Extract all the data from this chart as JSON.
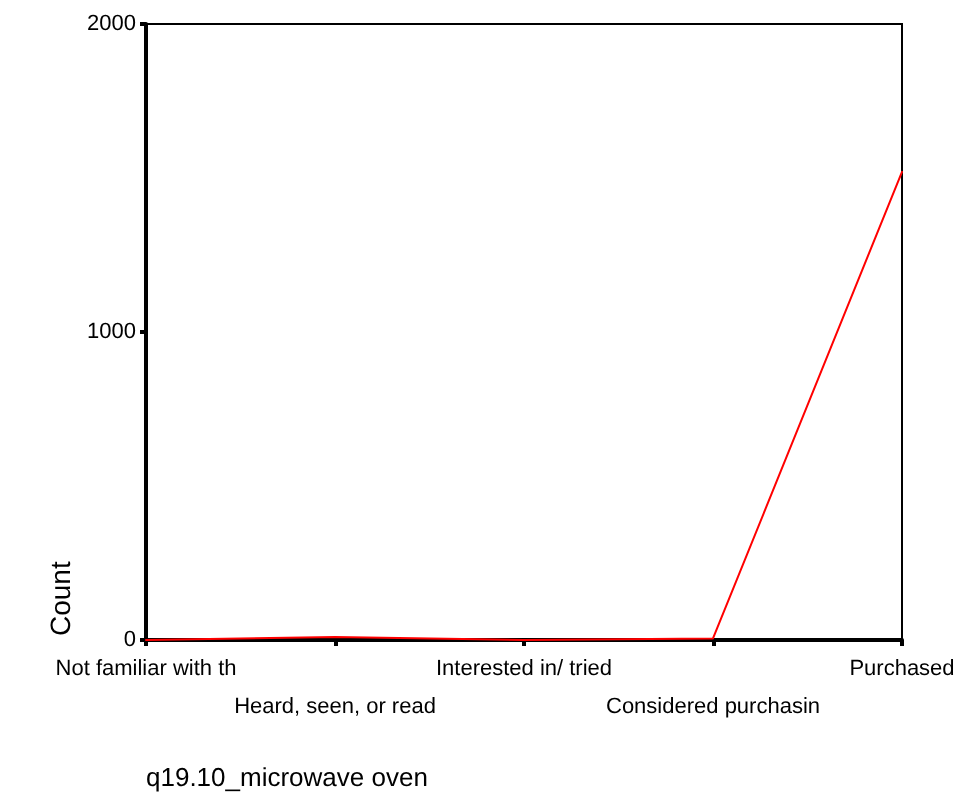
{
  "chart_data": {
    "type": "line",
    "xlabel": "q19.10_microwave oven",
    "ylabel": "Count",
    "categories": [
      "Not familiar with th",
      "Heard, seen, or read",
      "Interested in/ tried",
      "Considered purchasin",
      "Purchased"
    ],
    "series": [
      {
        "color": "#ff0000",
        "values": [
          0,
          10,
          0,
          5,
          1520
        ]
      }
    ],
    "ylim": [
      0,
      2000
    ],
    "yticks": [
      0,
      1000,
      2000
    ]
  }
}
